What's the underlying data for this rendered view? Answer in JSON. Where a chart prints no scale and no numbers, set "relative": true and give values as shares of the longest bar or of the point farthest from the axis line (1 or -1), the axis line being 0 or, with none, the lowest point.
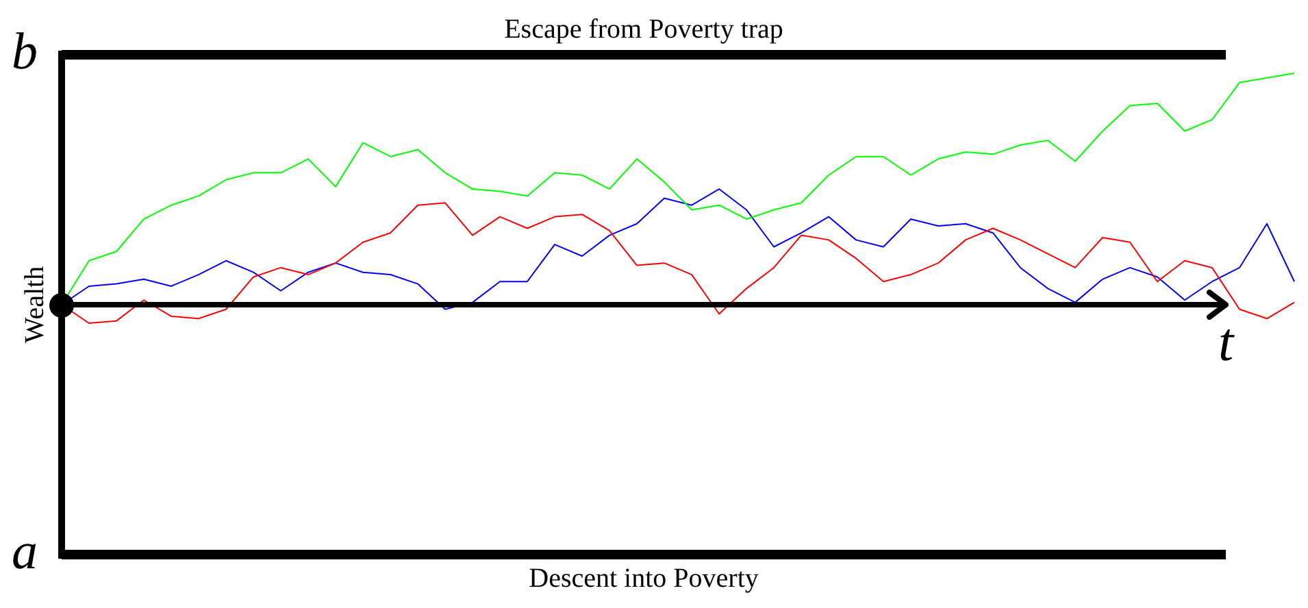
{
  "chart_data": {
    "type": "line",
    "relative": true,
    "xlabel": "t",
    "ylabel": "Wealth",
    "marker": "none",
    "categories": [
      null,
      null,
      null,
      null,
      null,
      null,
      null,
      null,
      null,
      null,
      null,
      null,
      null,
      null,
      null,
      null,
      null,
      null,
      null,
      null,
      null,
      null,
      null,
      null,
      null,
      null,
      null,
      null,
      null,
      null,
      null,
      null,
      null,
      null,
      null,
      null,
      null,
      null,
      null,
      null,
      null,
      null,
      null,
      null,
      null,
      null
    ],
    "series": [
      {
        "color": "#00ff00",
        "values": [
          0,
          0.19,
          0.23,
          0.37,
          0.43,
          0.47,
          0.54,
          0.57,
          0.57,
          0.63,
          0.51,
          0.7,
          0.64,
          0.67,
          0.57,
          0.5,
          0.49,
          0.47,
          0.57,
          0.56,
          0.5,
          0.63,
          0.53,
          0.41,
          0.43,
          0.37,
          0.41,
          0.44,
          0.56,
          0.64,
          0.64,
          0.56,
          0.63,
          0.66,
          0.65,
          0.69,
          0.71,
          0.62,
          0.75,
          0.86,
          0.87,
          0.75,
          0.8,
          0.96,
          0.98,
          1
        ]
      },
      {
        "color": "#ff0000",
        "values": [
          0,
          -0.08,
          -0.07,
          0.02,
          -0.05,
          -0.06,
          -0.02,
          0.12,
          0.16,
          0.13,
          0.18,
          0.27,
          0.31,
          0.43,
          0.44,
          0.3,
          0.38,
          0.33,
          0.38,
          0.39,
          0.32,
          0.17,
          0.18,
          0.13,
          -0.04,
          0.07,
          0.16,
          0.3,
          0.28,
          0.2,
          0.1,
          0.13,
          0.18,
          0.28,
          0.33,
          0.28,
          0.22,
          0.16,
          0.29,
          0.27,
          0.1,
          0.19,
          0.16,
          -0.02,
          -0.06,
          0.01
        ]
      },
      {
        "color": "#0000ff",
        "values": [
          0,
          0.08,
          0.09,
          0.11,
          0.08,
          0.13,
          0.19,
          0.14,
          0.06,
          0.14,
          0.18,
          0.14,
          0.13,
          0.09,
          -0.02,
          0.01,
          0.1,
          0.1,
          0.26,
          0.21,
          0.3,
          0.35,
          0.46,
          0.43,
          0.5,
          0.41,
          0.25,
          0.31,
          0.38,
          0.28,
          0.25,
          0.37,
          0.34,
          0.35,
          0.31,
          0.16,
          0.07,
          0.01,
          0.11,
          0.16,
          0.12,
          0.02,
          0.1,
          0.16,
          0.35,
          0.1
        ]
      }
    ],
    "ref_lines": [
      {
        "axis": "y",
        "value": 1.08,
        "label": "b"
      },
      {
        "axis": "y",
        "value": -1.08,
        "label": "a"
      }
    ],
    "annotations": [
      {
        "text": "Escape from Poverty trap",
        "y": 1.08
      },
      {
        "text": "Descent into Poverty",
        "y": -1.08
      }
    ]
  }
}
